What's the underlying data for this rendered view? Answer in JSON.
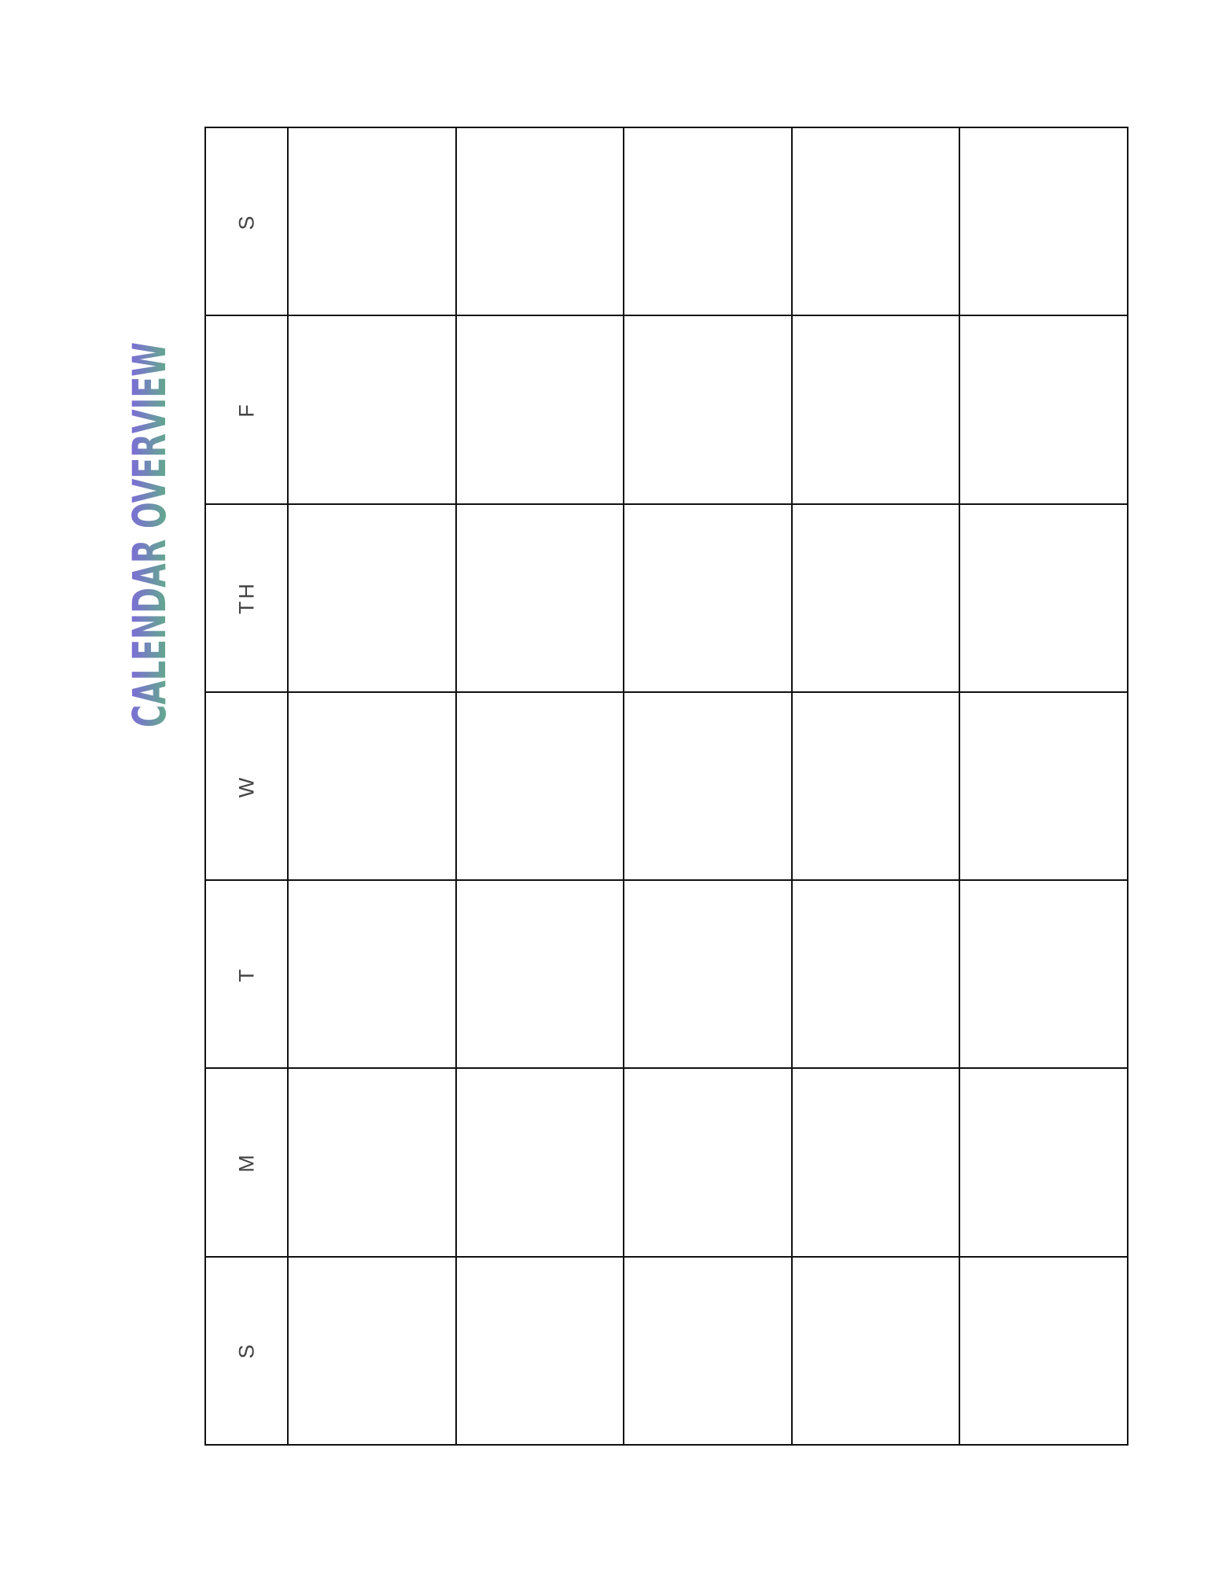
{
  "title": "CALENDAR OVERVIEW",
  "colors": {
    "gradient_start": "#5cba78",
    "gradient_end": "#825ee9",
    "grid": "#111111",
    "label": "#444444"
  },
  "days": [
    "S",
    "M",
    "T",
    "W",
    "TH",
    "F",
    "S"
  ],
  "columns_per_day": 5
}
